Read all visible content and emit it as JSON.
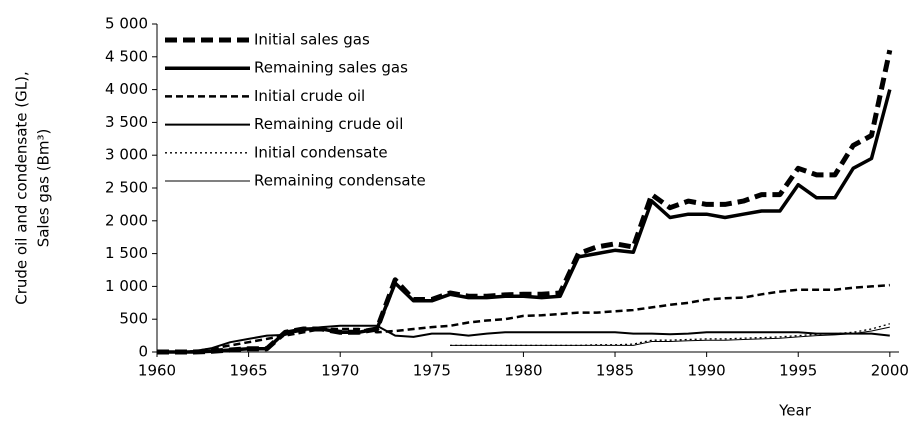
{
  "chart_data": {
    "type": "line",
    "x_label": "Year",
    "y_label": [
      "Crude oil and condensate (GL),",
      "Sales gas (Bm³)"
    ],
    "x": [
      1960,
      1961,
      1962,
      1963,
      1964,
      1965,
      1966,
      1967,
      1968,
      1969,
      1970,
      1971,
      1972,
      1973,
      1974,
      1975,
      1976,
      1977,
      1978,
      1979,
      1980,
      1981,
      1982,
      1983,
      1984,
      1985,
      1986,
      1987,
      1988,
      1989,
      1990,
      1991,
      1992,
      1993,
      1994,
      1995,
      1996,
      1997,
      1998,
      1999,
      2000
    ],
    "xlim": [
      1960,
      2000.5
    ],
    "xticks": [
      1960,
      1965,
      1970,
      1975,
      1980,
      1985,
      1990,
      1995,
      2000
    ],
    "ylim": [
      0,
      5000
    ],
    "yticks": [
      0,
      500,
      {
        "value": 1000,
        "label": "1 000"
      },
      {
        "value": 1500,
        "label": "1 500"
      },
      {
        "value": 2000,
        "label": "2 000"
      },
      {
        "value": 2500,
        "label": "2 500"
      },
      {
        "value": 3000,
        "label": "3 000"
      },
      {
        "value": 3500,
        "label": "3 500"
      },
      {
        "value": 4000,
        "label": "4 000"
      },
      {
        "value": 4500,
        "label": "4 500"
      },
      {
        "value": 5000,
        "label": "5 000"
      }
    ],
    "grid": false,
    "legend": "upper-left",
    "series": [
      {
        "name": "Initial sales gas",
        "color": "#000000",
        "style": "dashed",
        "width": 5,
        "values": [
          0,
          0,
          0,
          10,
          30,
          50,
          50,
          300,
          350,
          350,
          300,
          300,
          350,
          1100,
          800,
          800,
          900,
          850,
          850,
          870,
          880,
          880,
          900,
          1500,
          1600,
          1650,
          1600,
          2400,
          2200,
          2300,
          2250,
          2250,
          2300,
          2400,
          2400,
          2800,
          2700,
          2700,
          3150,
          3300,
          4600
        ]
      },
      {
        "name": "Remaining sales gas",
        "color": "#000000",
        "style": "solid",
        "width": 3.5,
        "values": [
          0,
          0,
          0,
          10,
          30,
          50,
          50,
          300,
          350,
          350,
          300,
          300,
          350,
          1050,
          780,
          780,
          880,
          830,
          830,
          850,
          850,
          830,
          850,
          1450,
          1500,
          1550,
          1520,
          2300,
          2050,
          2100,
          2100,
          2050,
          2100,
          2150,
          2150,
          2550,
          2350,
          2350,
          2800,
          2950,
          4000
        ]
      },
      {
        "name": "Initial crude oil",
        "color": "#000000",
        "style": "dashed",
        "width": 2.5,
        "values": [
          0,
          0,
          10,
          50,
          100,
          150,
          200,
          250,
          300,
          350,
          350,
          350,
          300,
          320,
          350,
          380,
          400,
          450,
          480,
          500,
          550,
          560,
          580,
          600,
          600,
          620,
          640,
          680,
          720,
          750,
          800,
          820,
          830,
          880,
          920,
          950,
          950,
          950,
          980,
          1000,
          1020
        ]
      },
      {
        "name": "Remaining crude oil",
        "color": "#000000",
        "style": "solid",
        "width": 2,
        "values": [
          0,
          0,
          10,
          60,
          150,
          200,
          250,
          260,
          350,
          380,
          400,
          400,
          400,
          250,
          230,
          280,
          280,
          250,
          280,
          300,
          300,
          300,
          300,
          300,
          300,
          300,
          280,
          280,
          270,
          280,
          300,
          300,
          300,
          300,
          300,
          300,
          280,
          280,
          280,
          280,
          250
        ]
      },
      {
        "name": "Initial condensate",
        "color": "#000000",
        "style": "dotted",
        "width": 1.3,
        "values": [
          null,
          null,
          null,
          null,
          null,
          null,
          null,
          null,
          null,
          null,
          null,
          null,
          null,
          null,
          null,
          null,
          100,
          100,
          100,
          100,
          100,
          100,
          100,
          100,
          110,
          110,
          120,
          180,
          180,
          190,
          200,
          200,
          210,
          220,
          230,
          250,
          270,
          280,
          300,
          350,
          430
        ]
      },
      {
        "name": "Remaining condensate",
        "color": "#000000",
        "style": "solid",
        "width": 1,
        "values": [
          null,
          null,
          null,
          null,
          null,
          null,
          null,
          null,
          null,
          null,
          null,
          null,
          null,
          null,
          null,
          null,
          100,
          100,
          100,
          100,
          100,
          100,
          100,
          100,
          100,
          100,
          100,
          160,
          160,
          170,
          180,
          180,
          190,
          200,
          210,
          230,
          250,
          260,
          280,
          320,
          380
        ]
      }
    ]
  }
}
